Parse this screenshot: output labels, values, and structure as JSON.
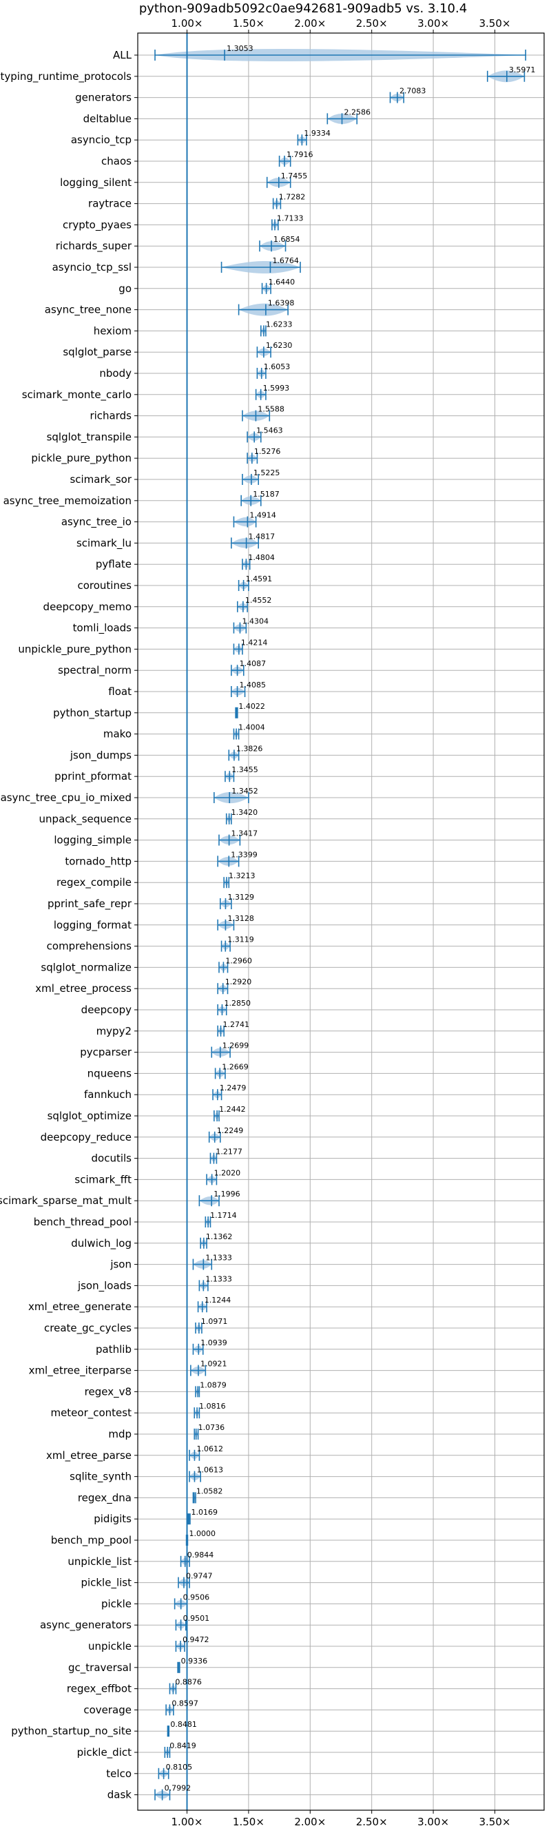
{
  "chart_data": {
    "type": "violin",
    "title": "python-909adb5092c0ae942681-909adb5 vs. 3.10.4",
    "xlabel": "",
    "ylabel": "",
    "xlim": [
      0.6,
      3.9
    ],
    "x_ticks": [
      1.0,
      1.5,
      2.0,
      2.5,
      3.0,
      3.5
    ],
    "x_tick_labels": [
      "1.00×",
      "1.50×",
      "2.00×",
      "2.50×",
      "3.00×",
      "3.50×"
    ],
    "reference_line": 1.0,
    "grid": true,
    "colors": {
      "series": "#1f77b4",
      "violin_fill": "#a9c8e4",
      "grid": "#b0b0b0"
    },
    "series": [
      {
        "name": "ALL",
        "label": "1.3053",
        "mean": 1.3053,
        "min": 0.74,
        "max": 3.75
      },
      {
        "name": "typing_runtime_protocols",
        "label": "3.5971",
        "mean": 3.5971,
        "min": 3.44,
        "max": 3.74
      },
      {
        "name": "generators",
        "label": "2.7083",
        "mean": 2.7083,
        "min": 2.65,
        "max": 2.76
      },
      {
        "name": "deltablue",
        "label": "2.2586",
        "mean": 2.2586,
        "min": 2.14,
        "max": 2.38
      },
      {
        "name": "asyncio_tcp",
        "label": "1.9334",
        "mean": 1.9334,
        "min": 1.9,
        "max": 1.97
      },
      {
        "name": "chaos",
        "label": "1.7916",
        "mean": 1.7916,
        "min": 1.75,
        "max": 1.84
      },
      {
        "name": "logging_silent",
        "label": "1.7455",
        "mean": 1.7455,
        "min": 1.65,
        "max": 1.84
      },
      {
        "name": "raytrace",
        "label": "1.7282",
        "mean": 1.7282,
        "min": 1.7,
        "max": 1.76
      },
      {
        "name": "crypto_pyaes",
        "label": "1.7133",
        "mean": 1.7133,
        "min": 1.69,
        "max": 1.74
      },
      {
        "name": "richards_super",
        "label": "1.6854",
        "mean": 1.6854,
        "min": 1.59,
        "max": 1.8
      },
      {
        "name": "asyncio_tcp_ssl",
        "label": "1.6764",
        "mean": 1.6764,
        "min": 1.28,
        "max": 1.92
      },
      {
        "name": "go",
        "label": "1.6440",
        "mean": 1.644,
        "min": 1.61,
        "max": 1.68
      },
      {
        "name": "async_tree_none",
        "label": "1.6398",
        "mean": 1.6398,
        "min": 1.42,
        "max": 1.82
      },
      {
        "name": "hexiom",
        "label": "1.6233",
        "mean": 1.6233,
        "min": 1.6,
        "max": 1.64
      },
      {
        "name": "sqlglot_parse",
        "label": "1.6230",
        "mean": 1.623,
        "min": 1.57,
        "max": 1.68
      },
      {
        "name": "nbody",
        "label": "1.6053",
        "mean": 1.6053,
        "min": 1.57,
        "max": 1.64
      },
      {
        "name": "scimark_monte_carlo",
        "label": "1.5993",
        "mean": 1.5993,
        "min": 1.56,
        "max": 1.64
      },
      {
        "name": "richards",
        "label": "1.5588",
        "mean": 1.5588,
        "min": 1.45,
        "max": 1.67
      },
      {
        "name": "sqlglot_transpile",
        "label": "1.5463",
        "mean": 1.5463,
        "min": 1.49,
        "max": 1.6
      },
      {
        "name": "pickle_pure_python",
        "label": "1.5276",
        "mean": 1.5276,
        "min": 1.49,
        "max": 1.57
      },
      {
        "name": "scimark_sor",
        "label": "1.5225",
        "mean": 1.5225,
        "min": 1.45,
        "max": 1.58
      },
      {
        "name": "async_tree_memoization",
        "label": "1.5187",
        "mean": 1.5187,
        "min": 1.44,
        "max": 1.6
      },
      {
        "name": "async_tree_io",
        "label": "1.4914",
        "mean": 1.4914,
        "min": 1.38,
        "max": 1.56
      },
      {
        "name": "scimark_lu",
        "label": "1.4817",
        "mean": 1.4817,
        "min": 1.36,
        "max": 1.58
      },
      {
        "name": "pyflate",
        "label": "1.4804",
        "mean": 1.4804,
        "min": 1.45,
        "max": 1.51
      },
      {
        "name": "coroutines",
        "label": "1.4591",
        "mean": 1.4591,
        "min": 1.42,
        "max": 1.5
      },
      {
        "name": "deepcopy_memo",
        "label": "1.4552",
        "mean": 1.4552,
        "min": 1.41,
        "max": 1.49
      },
      {
        "name": "tomli_loads",
        "label": "1.4304",
        "mean": 1.4304,
        "min": 1.38,
        "max": 1.48
      },
      {
        "name": "unpickle_pure_python",
        "label": "1.4214",
        "mean": 1.4214,
        "min": 1.38,
        "max": 1.45
      },
      {
        "name": "spectral_norm",
        "label": "1.4087",
        "mean": 1.4087,
        "min": 1.36,
        "max": 1.46
      },
      {
        "name": "float",
        "label": "1.4085",
        "mean": 1.4085,
        "min": 1.36,
        "max": 1.47
      },
      {
        "name": "python_startup",
        "label": "1.4022",
        "mean": 1.4022,
        "min": 1.395,
        "max": 1.41
      },
      {
        "name": "mako",
        "label": "1.4004",
        "mean": 1.4004,
        "min": 1.38,
        "max": 1.42
      },
      {
        "name": "json_dumps",
        "label": "1.3826",
        "mean": 1.3826,
        "min": 1.34,
        "max": 1.42
      },
      {
        "name": "pprint_pformat",
        "label": "1.3455",
        "mean": 1.3455,
        "min": 1.31,
        "max": 1.38
      },
      {
        "name": "async_tree_cpu_io_mixed",
        "label": "1.3452",
        "mean": 1.3452,
        "min": 1.22,
        "max": 1.5
      },
      {
        "name": "unpack_sequence",
        "label": "1.3420",
        "mean": 1.342,
        "min": 1.32,
        "max": 1.36
      },
      {
        "name": "logging_simple",
        "label": "1.3417",
        "mean": 1.3417,
        "min": 1.26,
        "max": 1.43
      },
      {
        "name": "tornado_http",
        "label": "1.3399",
        "mean": 1.3399,
        "min": 1.25,
        "max": 1.42
      },
      {
        "name": "regex_compile",
        "label": "1.3213",
        "mean": 1.3213,
        "min": 1.3,
        "max": 1.34
      },
      {
        "name": "pprint_safe_repr",
        "label": "1.3129",
        "mean": 1.3129,
        "min": 1.27,
        "max": 1.36
      },
      {
        "name": "logging_format",
        "label": "1.3128",
        "mean": 1.3128,
        "min": 1.25,
        "max": 1.38
      },
      {
        "name": "comprehensions",
        "label": "1.3119",
        "mean": 1.3119,
        "min": 1.28,
        "max": 1.35
      },
      {
        "name": "sqlglot_normalize",
        "label": "1.2960",
        "mean": 1.296,
        "min": 1.26,
        "max": 1.33
      },
      {
        "name": "xml_etree_process",
        "label": "1.2920",
        "mean": 1.292,
        "min": 1.25,
        "max": 1.33
      },
      {
        "name": "deepcopy",
        "label": "1.2850",
        "mean": 1.285,
        "min": 1.25,
        "max": 1.32
      },
      {
        "name": "mypy2",
        "label": "1.2741",
        "mean": 1.2741,
        "min": 1.25,
        "max": 1.3
      },
      {
        "name": "pycparser",
        "label": "1.2699",
        "mean": 1.2699,
        "min": 1.2,
        "max": 1.35
      },
      {
        "name": "nqueens",
        "label": "1.2669",
        "mean": 1.2669,
        "min": 1.23,
        "max": 1.31
      },
      {
        "name": "fannkuch",
        "label": "1.2479",
        "mean": 1.2479,
        "min": 1.21,
        "max": 1.28
      },
      {
        "name": "sqlglot_optimize",
        "label": "1.2442",
        "mean": 1.2442,
        "min": 1.22,
        "max": 1.26
      },
      {
        "name": "deepcopy_reduce",
        "label": "1.2249",
        "mean": 1.2249,
        "min": 1.18,
        "max": 1.27
      },
      {
        "name": "docutils",
        "label": "1.2177",
        "mean": 1.2177,
        "min": 1.19,
        "max": 1.24
      },
      {
        "name": "scimark_fft",
        "label": "1.2020",
        "mean": 1.202,
        "min": 1.16,
        "max": 1.24
      },
      {
        "name": "scimark_sparse_mat_mult",
        "label": "1.1996",
        "mean": 1.1996,
        "min": 1.1,
        "max": 1.26
      },
      {
        "name": "bench_thread_pool",
        "label": "1.1714",
        "mean": 1.1714,
        "min": 1.15,
        "max": 1.19
      },
      {
        "name": "dulwich_log",
        "label": "1.1362",
        "mean": 1.1362,
        "min": 1.11,
        "max": 1.16
      },
      {
        "name": "json",
        "label": "1.1333",
        "mean": 1.1333,
        "min": 1.05,
        "max": 1.2
      },
      {
        "name": "json_loads",
        "label": "1.1333",
        "mean": 1.1333,
        "min": 1.1,
        "max": 1.17
      },
      {
        "name": "xml_etree_generate",
        "label": "1.1244",
        "mean": 1.1244,
        "min": 1.09,
        "max": 1.16
      },
      {
        "name": "create_gc_cycles",
        "label": "1.0971",
        "mean": 1.0971,
        "min": 1.07,
        "max": 1.12
      },
      {
        "name": "pathlib",
        "label": "1.0939",
        "mean": 1.0939,
        "min": 1.05,
        "max": 1.13
      },
      {
        "name": "xml_etree_iterparse",
        "label": "1.0921",
        "mean": 1.0921,
        "min": 1.03,
        "max": 1.15
      },
      {
        "name": "regex_v8",
        "label": "1.0879",
        "mean": 1.0879,
        "min": 1.07,
        "max": 1.1
      },
      {
        "name": "meteor_contest",
        "label": "1.0816",
        "mean": 1.0816,
        "min": 1.06,
        "max": 1.1
      },
      {
        "name": "mdp",
        "label": "1.0736",
        "mean": 1.0736,
        "min": 1.06,
        "max": 1.09
      },
      {
        "name": "xml_etree_parse",
        "label": "1.0612",
        "mean": 1.0612,
        "min": 1.02,
        "max": 1.1
      },
      {
        "name": "sqlite_synth",
        "label": "1.0613",
        "mean": 1.0613,
        "min": 1.02,
        "max": 1.11
      },
      {
        "name": "regex_dna",
        "label": "1.0582",
        "mean": 1.0582,
        "min": 1.05,
        "max": 1.07
      },
      {
        "name": "pidigits",
        "label": "1.0169",
        "mean": 1.0169,
        "min": 1.01,
        "max": 1.025
      },
      {
        "name": "bench_mp_pool",
        "label": "1.0000",
        "mean": 1.0,
        "min": 0.995,
        "max": 1.005
      },
      {
        "name": "unpickle_list",
        "label": "0.9844",
        "mean": 0.9844,
        "min": 0.95,
        "max": 1.02
      },
      {
        "name": "pickle_list",
        "label": "0.9747",
        "mean": 0.9747,
        "min": 0.93,
        "max": 1.02
      },
      {
        "name": "pickle",
        "label": "0.9506",
        "mean": 0.9506,
        "min": 0.9,
        "max": 1.0
      },
      {
        "name": "async_generators",
        "label": "0.9501",
        "mean": 0.9501,
        "min": 0.91,
        "max": 0.99
      },
      {
        "name": "unpickle",
        "label": "0.9472",
        "mean": 0.9472,
        "min": 0.91,
        "max": 0.98
      },
      {
        "name": "gc_traversal",
        "label": "0.9336",
        "mean": 0.9336,
        "min": 0.925,
        "max": 0.94
      },
      {
        "name": "regex_effbot",
        "label": "0.8876",
        "mean": 0.8876,
        "min": 0.86,
        "max": 0.91
      },
      {
        "name": "coverage",
        "label": "0.8597",
        "mean": 0.8597,
        "min": 0.83,
        "max": 0.89
      },
      {
        "name": "python_startup_no_site",
        "label": "0.8481",
        "mean": 0.8481,
        "min": 0.843,
        "max": 0.853
      },
      {
        "name": "pickle_dict",
        "label": "0.8419",
        "mean": 0.8419,
        "min": 0.82,
        "max": 0.86
      },
      {
        "name": "telco",
        "label": "0.8105",
        "mean": 0.8105,
        "min": 0.77,
        "max": 0.85
      },
      {
        "name": "dask",
        "label": "0.7992",
        "mean": 0.7992,
        "min": 0.74,
        "max": 0.86
      }
    ]
  }
}
